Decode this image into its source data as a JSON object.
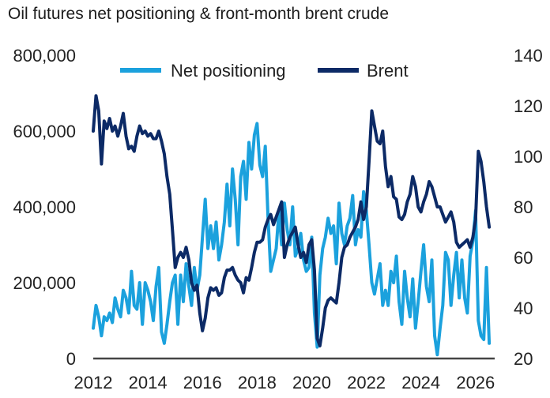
{
  "chart_data": {
    "type": "line",
    "title": "Oil futures net positioning & front-month brent crude",
    "x_ticks": [
      "2012",
      "2014",
      "2016",
      "2018",
      "2020",
      "2022",
      "2024",
      "2026"
    ],
    "xlim": [
      2012,
      2026.7
    ],
    "left_axis": {
      "ticks": [
        "0",
        "200,000",
        "400,000",
        "600,000",
        "800,000"
      ],
      "ylim": [
        0,
        800000
      ]
    },
    "right_axis": {
      "ticks": [
        "20",
        "40",
        "60",
        "80",
        "100",
        "120",
        "140"
      ],
      "ylim": [
        20,
        140
      ]
    },
    "legend": {
      "placement": "top-center"
    },
    "grid": false,
    "series": [
      {
        "name": "Net positioning",
        "axis": "left",
        "color": "#1ba1dd",
        "x": [
          2012.0,
          2012.1,
          2012.2,
          2012.3,
          2012.4,
          2012.5,
          2012.6,
          2012.7,
          2012.8,
          2012.9,
          2013.0,
          2013.1,
          2013.2,
          2013.3,
          2013.4,
          2013.5,
          2013.6,
          2013.7,
          2013.8,
          2013.9,
          2014.0,
          2014.1,
          2014.2,
          2014.3,
          2014.4,
          2014.5,
          2014.6,
          2014.7,
          2014.8,
          2014.9,
          2015.0,
          2015.1,
          2015.2,
          2015.3,
          2015.4,
          2015.5,
          2015.6,
          2015.7,
          2015.8,
          2015.9,
          2016.0,
          2016.1,
          2016.2,
          2016.3,
          2016.4,
          2016.5,
          2016.6,
          2016.7,
          2016.8,
          2016.9,
          2017.0,
          2017.1,
          2017.2,
          2017.3,
          2017.4,
          2017.5,
          2017.6,
          2017.7,
          2017.8,
          2017.9,
          2018.0,
          2018.1,
          2018.2,
          2018.3,
          2018.4,
          2018.5,
          2018.6,
          2018.7,
          2018.8,
          2018.9,
          2019.0,
          2019.1,
          2019.2,
          2019.3,
          2019.4,
          2019.5,
          2019.6,
          2019.7,
          2019.8,
          2019.9,
          2020.0,
          2020.1,
          2020.2,
          2020.3,
          2020.4,
          2020.5,
          2020.6,
          2020.7,
          2020.8,
          2020.9,
          2021.0,
          2021.1,
          2021.2,
          2021.3,
          2021.4,
          2021.5,
          2021.6,
          2021.7,
          2021.8,
          2021.9,
          2022.0,
          2022.1,
          2022.2,
          2022.3,
          2022.4,
          2022.5,
          2022.6,
          2022.7,
          2022.8,
          2022.9,
          2023.0,
          2023.1,
          2023.2,
          2023.3,
          2023.4,
          2023.5,
          2023.6,
          2023.7,
          2023.8,
          2023.9,
          2024.0,
          2024.1,
          2024.2,
          2024.3,
          2024.4,
          2024.5,
          2024.6,
          2024.7,
          2024.8,
          2024.9,
          2025.0,
          2025.1,
          2025.2,
          2025.3,
          2025.4,
          2025.5,
          2025.6,
          2025.7,
          2025.8,
          2025.9,
          2026.0,
          2026.1,
          2026.2,
          2026.3,
          2026.4,
          2026.5
        ],
        "values": [
          80000,
          140000,
          110000,
          60000,
          110000,
          100000,
          120000,
          95000,
          160000,
          130000,
          110000,
          180000,
          160000,
          120000,
          230000,
          140000,
          130000,
          200000,
          90000,
          200000,
          180000,
          150000,
          100000,
          190000,
          240000,
          70000,
          40000,
          90000,
          150000,
          200000,
          220000,
          90000,
          220000,
          150000,
          250000,
          190000,
          140000,
          240000,
          180000,
          220000,
          320000,
          420000,
          290000,
          350000,
          290000,
          360000,
          260000,
          300000,
          360000,
          460000,
          350000,
          500000,
          420000,
          300000,
          480000,
          520000,
          420000,
          570000,
          500000,
          590000,
          620000,
          510000,
          480000,
          560000,
          370000,
          230000,
          260000,
          290000,
          390000,
          300000,
          410000,
          340000,
          300000,
          400000,
          270000,
          290000,
          330000,
          260000,
          230000,
          240000,
          320000,
          120000,
          30000,
          220000,
          290000,
          320000,
          370000,
          330000,
          350000,
          250000,
          410000,
          330000,
          300000,
          350000,
          370000,
          430000,
          300000,
          340000,
          320000,
          440000,
          390000,
          300000,
          200000,
          170000,
          210000,
          250000,
          140000,
          180000,
          140000,
          230000,
          200000,
          270000,
          150000,
          90000,
          230000,
          160000,
          110000,
          210000,
          80000,
          150000,
          230000,
          300000,
          190000,
          150000,
          260000,
          60000,
          10000,
          80000,
          140000,
          280000,
          260000,
          140000,
          220000,
          280000,
          160000,
          260000,
          160000,
          120000,
          270000,
          310000,
          390000,
          100000,
          60000,
          50000,
          240000,
          40000
        ],
        "values_note": ""
      },
      {
        "name": "Brent",
        "axis": "right",
        "color": "#0c2a66",
        "x": [
          2012.0,
          2012.1,
          2012.2,
          2012.3,
          2012.4,
          2012.5,
          2012.6,
          2012.7,
          2012.8,
          2012.9,
          2013.0,
          2013.1,
          2013.2,
          2013.3,
          2013.4,
          2013.5,
          2013.6,
          2013.7,
          2013.8,
          2013.9,
          2014.0,
          2014.1,
          2014.2,
          2014.3,
          2014.4,
          2014.5,
          2014.6,
          2014.7,
          2014.8,
          2014.9,
          2015.0,
          2015.1,
          2015.2,
          2015.3,
          2015.4,
          2015.5,
          2015.6,
          2015.7,
          2015.8,
          2015.9,
          2016.0,
          2016.1,
          2016.2,
          2016.3,
          2016.4,
          2016.5,
          2016.6,
          2016.7,
          2016.8,
          2016.9,
          2017.0,
          2017.1,
          2017.2,
          2017.3,
          2017.4,
          2017.5,
          2017.6,
          2017.7,
          2017.8,
          2017.9,
          2018.0,
          2018.1,
          2018.2,
          2018.3,
          2018.4,
          2018.5,
          2018.6,
          2018.7,
          2018.8,
          2018.9,
          2019.0,
          2019.1,
          2019.2,
          2019.3,
          2019.4,
          2019.5,
          2019.6,
          2019.7,
          2019.8,
          2019.9,
          2020.0,
          2020.1,
          2020.2,
          2020.3,
          2020.4,
          2020.5,
          2020.6,
          2020.7,
          2020.8,
          2020.9,
          2021.0,
          2021.1,
          2021.2,
          2021.3,
          2021.4,
          2021.5,
          2021.6,
          2021.7,
          2021.8,
          2021.9,
          2022.0,
          2022.1,
          2022.2,
          2022.3,
          2022.4,
          2022.5,
          2022.6,
          2022.7,
          2022.8,
          2022.9,
          2023.0,
          2023.1,
          2023.2,
          2023.3,
          2023.4,
          2023.5,
          2023.6,
          2023.7,
          2023.8,
          2023.9,
          2024.0,
          2024.1,
          2024.2,
          2024.3,
          2024.4,
          2024.5,
          2024.6,
          2024.7,
          2024.8,
          2024.9,
          2025.0,
          2025.1,
          2025.2,
          2025.3,
          2025.4,
          2025.5,
          2025.6,
          2025.7,
          2025.8,
          2025.9,
          2026.0,
          2026.1,
          2026.2,
          2026.3,
          2026.4,
          2026.5
        ],
        "values": [
          110,
          124,
          118,
          97,
          114,
          111,
          115,
          110,
          112,
          108,
          112,
          117,
          108,
          103,
          104,
          102,
          108,
          112,
          109,
          110,
          108,
          109,
          107,
          107,
          110,
          106,
          101,
          92,
          85,
          71,
          56,
          60,
          62,
          60,
          64,
          59,
          50,
          47,
          49,
          38,
          31,
          36,
          44,
          48,
          47,
          48,
          45,
          46,
          52,
          55,
          55,
          56,
          53,
          51,
          50,
          46,
          52,
          51,
          56,
          62,
          66,
          66,
          67,
          72,
          75,
          77,
          73,
          76,
          79,
          82,
          60,
          65,
          68,
          70,
          72,
          65,
          60,
          62,
          58,
          65,
          67,
          55,
          28,
          25,
          32,
          40,
          43,
          44,
          43,
          42,
          50,
          60,
          64,
          65,
          68,
          70,
          72,
          75,
          82,
          75,
          80,
          98,
          118,
          112,
          106,
          105,
          110,
          96,
          88,
          92,
          84,
          83,
          76,
          75,
          77,
          82,
          85,
          92,
          88,
          80,
          78,
          82,
          85,
          90,
          88,
          84,
          80,
          80,
          77,
          74,
          76,
          78,
          74,
          66,
          64,
          65,
          66,
          67,
          64,
          68,
          75,
          102,
          98,
          90,
          80,
          72
        ],
        "values_note": ""
      }
    ]
  }
}
